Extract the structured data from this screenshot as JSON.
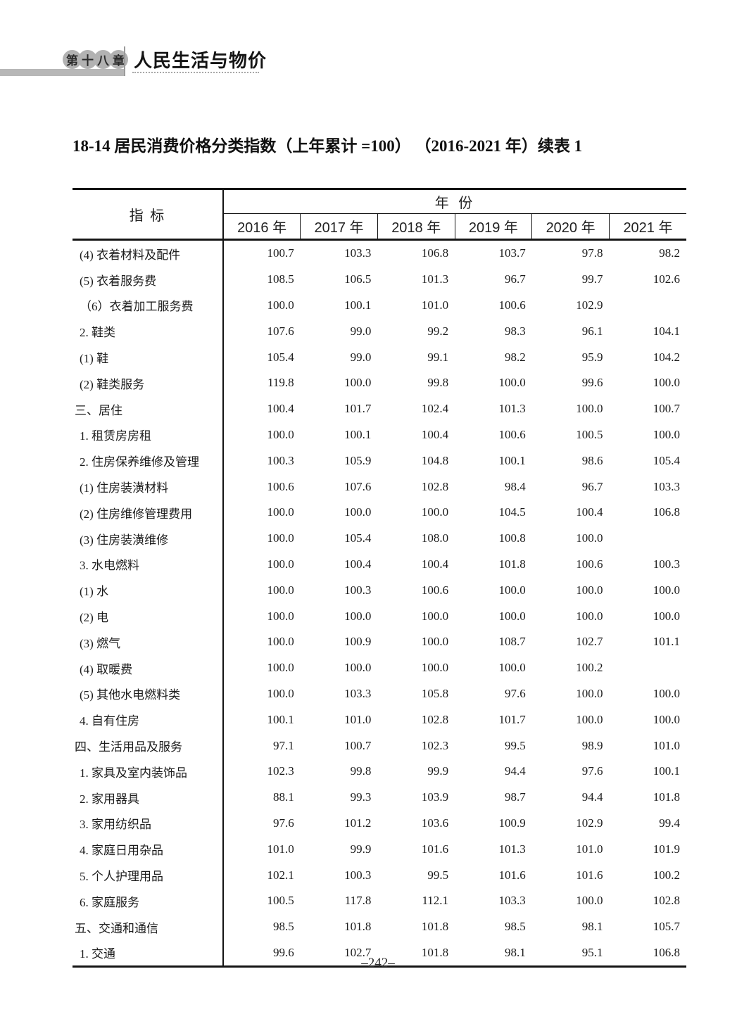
{
  "page_header": {
    "chapter_badge": [
      "第",
      "十",
      "八",
      "章"
    ],
    "chapter_title": "人民生活与物价"
  },
  "table_title": "18-14 居民消费价格分类指数（上年累计 =100） （2016-2021 年）续表 1",
  "table": {
    "indicator_header": "指 标",
    "year_group_header": "年 份",
    "year_headers": [
      "2016 年",
      "2017 年",
      "2018 年",
      "2019 年",
      "2020 年",
      "2021 年"
    ],
    "rows": [
      {
        "label": "(4) 衣着材料及配件",
        "indent": 1,
        "values": [
          "100.7",
          "103.3",
          "106.8",
          "103.7",
          "97.8",
          "98.2"
        ]
      },
      {
        "label": "(5) 衣着服务费",
        "indent": 1,
        "values": [
          "108.5",
          "106.5",
          "101.3",
          "96.7",
          "99.7",
          "102.6"
        ]
      },
      {
        "label": "（6）衣着加工服务费",
        "indent": 1,
        "values": [
          "100.0",
          "100.1",
          "101.0",
          "100.6",
          "102.9",
          ""
        ]
      },
      {
        "label": "2. 鞋类",
        "indent": 1,
        "values": [
          "107.6",
          "99.0",
          "99.2",
          "98.3",
          "96.1",
          "104.1"
        ]
      },
      {
        "label": "(1) 鞋",
        "indent": 1,
        "values": [
          "105.4",
          "99.0",
          "99.1",
          "98.2",
          "95.9",
          "104.2"
        ]
      },
      {
        "label": "(2) 鞋类服务",
        "indent": 1,
        "values": [
          "119.8",
          "100.0",
          "99.8",
          "100.0",
          "99.6",
          "100.0"
        ]
      },
      {
        "label": "三、居住",
        "indent": 0,
        "values": [
          "100.4",
          "101.7",
          "102.4",
          "101.3",
          "100.0",
          "100.7"
        ]
      },
      {
        "label": "1. 租赁房房租",
        "indent": 1,
        "values": [
          "100.0",
          "100.1",
          "100.4",
          "100.6",
          "100.5",
          "100.0"
        ]
      },
      {
        "label": "2. 住房保养维修及管理",
        "indent": 1,
        "values": [
          "100.3",
          "105.9",
          "104.8",
          "100.1",
          "98.6",
          "105.4"
        ]
      },
      {
        "label": "(1) 住房装潢材料",
        "indent": 1,
        "values": [
          "100.6",
          "107.6",
          "102.8",
          "98.4",
          "96.7",
          "103.3"
        ]
      },
      {
        "label": "(2) 住房维修管理费用",
        "indent": 1,
        "values": [
          "100.0",
          "100.0",
          "100.0",
          "104.5",
          "100.4",
          "106.8"
        ]
      },
      {
        "label": "(3) 住房装潢维修",
        "indent": 1,
        "values": [
          "100.0",
          "105.4",
          "108.0",
          "100.8",
          "100.0",
          ""
        ]
      },
      {
        "label": "3. 水电燃料",
        "indent": 1,
        "values": [
          "100.0",
          "100.4",
          "100.4",
          "101.8",
          "100.6",
          "100.3"
        ]
      },
      {
        "label": "(1) 水",
        "indent": 1,
        "values": [
          "100.0",
          "100.3",
          "100.6",
          "100.0",
          "100.0",
          "100.0"
        ]
      },
      {
        "label": "(2) 电",
        "indent": 1,
        "values": [
          "100.0",
          "100.0",
          "100.0",
          "100.0",
          "100.0",
          "100.0"
        ]
      },
      {
        "label": "(3) 燃气",
        "indent": 1,
        "values": [
          "100.0",
          "100.9",
          "100.0",
          "108.7",
          "102.7",
          "101.1"
        ]
      },
      {
        "label": "(4) 取暖费",
        "indent": 1,
        "values": [
          "100.0",
          "100.0",
          "100.0",
          "100.0",
          "100.2",
          ""
        ]
      },
      {
        "label": "(5) 其他水电燃料类",
        "indent": 1,
        "values": [
          "100.0",
          "103.3",
          "105.8",
          "97.6",
          "100.0",
          "100.0"
        ]
      },
      {
        "label": "4. 自有住房",
        "indent": 1,
        "values": [
          "100.1",
          "101.0",
          "102.8",
          "101.7",
          "100.0",
          "100.0"
        ]
      },
      {
        "label": "四、生活用品及服务",
        "indent": 0,
        "values": [
          "97.1",
          "100.7",
          "102.3",
          "99.5",
          "98.9",
          "101.0"
        ]
      },
      {
        "label": "1. 家具及室内装饰品",
        "indent": 1,
        "values": [
          "102.3",
          "99.8",
          "99.9",
          "94.4",
          "97.6",
          "100.1"
        ]
      },
      {
        "label": "2. 家用器具",
        "indent": 1,
        "values": [
          "88.1",
          "99.3",
          "103.9",
          "98.7",
          "94.4",
          "101.8"
        ]
      },
      {
        "label": "3. 家用纺织品",
        "indent": 1,
        "values": [
          "97.6",
          "101.2",
          "103.6",
          "100.9",
          "102.9",
          "99.4"
        ]
      },
      {
        "label": "4. 家庭日用杂品",
        "indent": 1,
        "values": [
          "101.0",
          "99.9",
          "101.6",
          "101.3",
          "101.0",
          "101.9"
        ]
      },
      {
        "label": "5. 个人护理用品",
        "indent": 1,
        "values": [
          "102.1",
          "100.3",
          "99.5",
          "101.6",
          "101.6",
          "100.2"
        ]
      },
      {
        "label": "6. 家庭服务",
        "indent": 1,
        "values": [
          "100.5",
          "117.8",
          "112.1",
          "103.3",
          "100.0",
          "102.8"
        ]
      },
      {
        "label": "五、交通和通信",
        "indent": 0,
        "values": [
          "98.5",
          "101.8",
          "101.8",
          "98.5",
          "98.1",
          "105.7"
        ]
      },
      {
        "label": "1. 交通",
        "indent": 1,
        "values": [
          "99.6",
          "102.7",
          "101.8",
          "98.1",
          "95.1",
          "106.8"
        ]
      }
    ]
  },
  "footer": {
    "page_number": "–242–"
  },
  "theme": {
    "badge_gray": "#b2b2b2",
    "bar_gray": "#b7b7b7"
  }
}
